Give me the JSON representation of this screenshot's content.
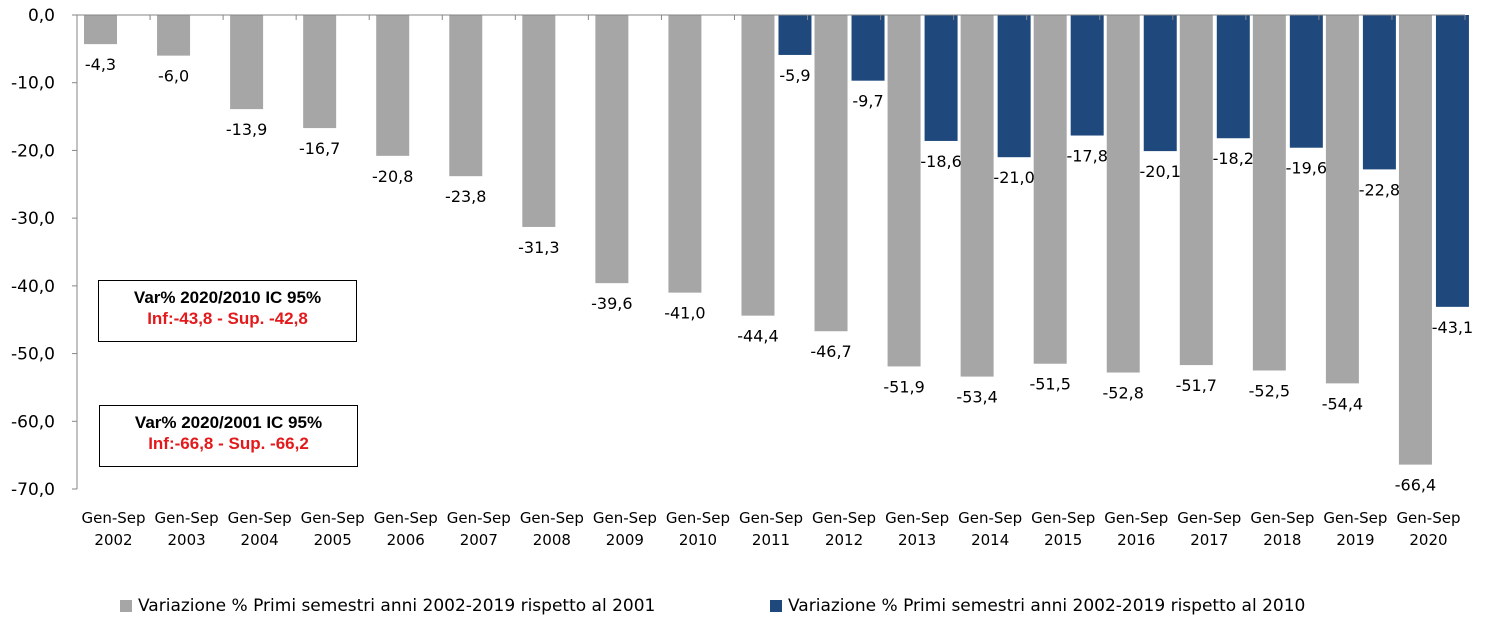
{
  "chart_data": {
    "type": "bar",
    "title": "",
    "xlabel": "",
    "ylabel": "",
    "ylim": [
      -70,
      0
    ],
    "yticks": [
      "0,0",
      "-10,0",
      "-20,0",
      "-30,0",
      "-40,0",
      "-50,0",
      "-60,0",
      "-70,0"
    ],
    "ytick_values": [
      0,
      -10,
      -20,
      -30,
      -40,
      -50,
      -60,
      -70
    ],
    "grid": false,
    "legend_position": "bottom",
    "categories": [
      [
        "Gen-Sep",
        "2002"
      ],
      [
        "Gen-Sep",
        "2003"
      ],
      [
        "Gen-Sep",
        "2004"
      ],
      [
        "Gen-Sep",
        "2005"
      ],
      [
        "Gen-Sep",
        "2006"
      ],
      [
        "Gen-Sep",
        "2007"
      ],
      [
        "Gen-Sep",
        "2008"
      ],
      [
        "Gen-Sep",
        "2009"
      ],
      [
        "Gen-Sep",
        "2010"
      ],
      [
        "Gen-Sep",
        "2011"
      ],
      [
        "Gen-Sep",
        "2012"
      ],
      [
        "Gen-Sep",
        "2013"
      ],
      [
        "Gen-Sep",
        "2014"
      ],
      [
        "Gen-Sep",
        "2015"
      ],
      [
        "Gen-Sep",
        "2016"
      ],
      [
        "Gen-Sep",
        "2017"
      ],
      [
        "Gen-Sep",
        "2018"
      ],
      [
        "Gen-Sep",
        "2019"
      ],
      [
        "Gen-Sep",
        "2020"
      ]
    ],
    "series": [
      {
        "name": "Variazione % Primi semestri anni 2002-2019 rispetto al 2001",
        "color": "#a6a6a6",
        "values": [
          -4.3,
          -6.0,
          -13.9,
          -16.7,
          -20.8,
          -23.8,
          -31.3,
          -39.6,
          -41.0,
          -44.4,
          -46.7,
          -51.9,
          -53.4,
          -51.5,
          -52.8,
          -51.7,
          -52.5,
          -54.4,
          -66.4
        ],
        "labels": [
          "-4,3",
          "-6,0",
          "-13,9",
          "-16,7",
          "-20,8",
          "-23,8",
          "-31,3",
          "-39,6",
          "-41,0",
          "-44,4",
          "-46,7",
          "-51,9",
          "-53,4",
          "-51,5",
          "-52,8",
          "-51,7",
          "-52,5",
          "-54,4",
          "-66,4"
        ]
      },
      {
        "name": "Variazione % Primi semestri anni 2002-2019 rispetto al 2010",
        "color": "#1f497d",
        "values": [
          null,
          null,
          null,
          null,
          null,
          null,
          null,
          null,
          null,
          -5.9,
          -9.7,
          -18.6,
          -21.0,
          -17.8,
          -20.1,
          -18.2,
          -19.6,
          -22.8,
          -43.1
        ],
        "labels": [
          null,
          null,
          null,
          null,
          null,
          null,
          null,
          null,
          null,
          "-5,9",
          "-9,7",
          "-18,6",
          "-21,0",
          "-17,8",
          "-20,1",
          "-18,2",
          "-19,6",
          "-22,8",
          "-43,1"
        ]
      }
    ],
    "annotations": [
      {
        "title": "Var% 2020/2010  IC 95%",
        "range": "Inf:-43,8   - Sup. -42,8"
      },
      {
        "title": "Var% 2020/2001  IC 95%",
        "range": "Inf:-66,8   - Sup. -66,2"
      }
    ]
  }
}
